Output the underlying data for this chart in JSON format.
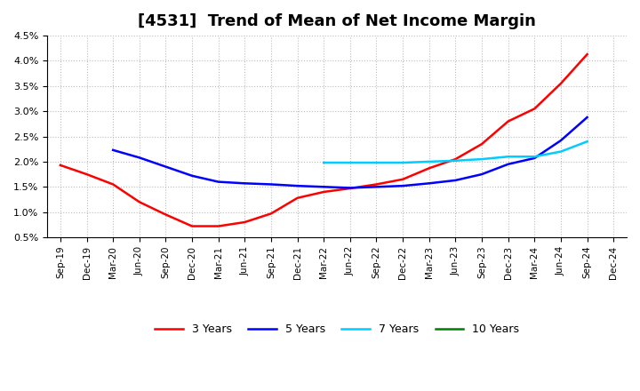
{
  "title": "[4531]  Trend of Mean of Net Income Margin",
  "x_labels": [
    "Sep-19",
    "Dec-19",
    "Mar-20",
    "Jun-20",
    "Sep-20",
    "Dec-20",
    "Mar-21",
    "Jun-21",
    "Sep-21",
    "Dec-21",
    "Mar-22",
    "Jun-22",
    "Sep-22",
    "Dec-22",
    "Mar-23",
    "Jun-23",
    "Sep-23",
    "Dec-23",
    "Mar-24",
    "Jun-24",
    "Sep-24",
    "Dec-24"
  ],
  "series": [
    {
      "name": "3 Years",
      "color": "#ff0000",
      "data_y": [
        1.93,
        1.75,
        1.55,
        1.2,
        0.95,
        0.72,
        0.72,
        0.8,
        0.97,
        1.28,
        1.4,
        1.47,
        1.55,
        1.65,
        1.87,
        2.05,
        2.35,
        2.8,
        3.05,
        3.55,
        4.13,
        null
      ]
    },
    {
      "name": "5 Years",
      "color": "#0000ff",
      "data_y": [
        null,
        null,
        2.23,
        2.08,
        1.9,
        1.72,
        1.6,
        1.57,
        1.55,
        1.52,
        1.5,
        1.48,
        1.5,
        1.52,
        1.57,
        1.63,
        1.75,
        1.95,
        2.07,
        2.42,
        2.88,
        null
      ]
    },
    {
      "name": "7 Years",
      "color": "#00ccff",
      "data_y": [
        null,
        null,
        null,
        null,
        null,
        null,
        null,
        null,
        null,
        null,
        1.98,
        1.98,
        1.98,
        1.98,
        2.0,
        2.02,
        2.05,
        2.1,
        2.1,
        2.2,
        2.4,
        null
      ]
    },
    {
      "name": "10 Years",
      "color": "#008000",
      "data_y": [
        null,
        null,
        null,
        null,
        null,
        null,
        null,
        null,
        null,
        null,
        null,
        null,
        null,
        null,
        null,
        null,
        null,
        null,
        null,
        null,
        null,
        null
      ]
    }
  ],
  "ylim": [
    0.005,
    0.045
  ],
  "yticks": [
    0.005,
    0.01,
    0.015,
    0.02,
    0.025,
    0.03,
    0.035,
    0.04,
    0.045
  ],
  "ytick_labels": [
    "0.5%",
    "1.0%",
    "1.5%",
    "2.0%",
    "2.5%",
    "3.0%",
    "3.5%",
    "4.0%",
    "4.5%"
  ],
  "background_color": "#ffffff",
  "grid_color": "#bbbbbb",
  "title_fontsize": 13
}
